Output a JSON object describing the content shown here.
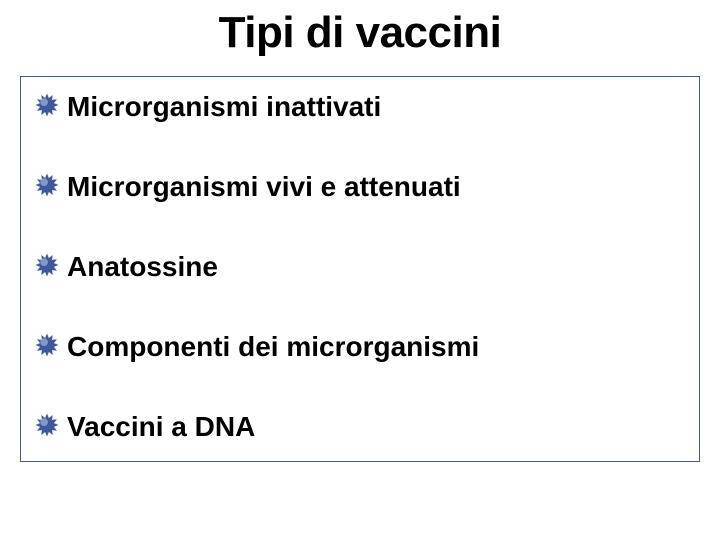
{
  "slide": {
    "title": "Tipi di vaccini",
    "title_fontsize": 44,
    "title_color": "#000000",
    "background_color": "#ffffff",
    "content_border_color": "#3f5a9a",
    "content_border_width": 1,
    "item_fontsize": 28,
    "item_gap": 48,
    "bullet": {
      "size": 24,
      "fill": "#3f5a9a",
      "highlight": "#8aa6d6"
    },
    "items": [
      {
        "label": "Microrganismi inattivati"
      },
      {
        "label": "Microrganismi vivi e attenuati"
      },
      {
        "label": "Anatossine"
      },
      {
        "label": "Componenti dei microrganismi"
      },
      {
        "label": "Vaccini a DNA"
      }
    ]
  }
}
